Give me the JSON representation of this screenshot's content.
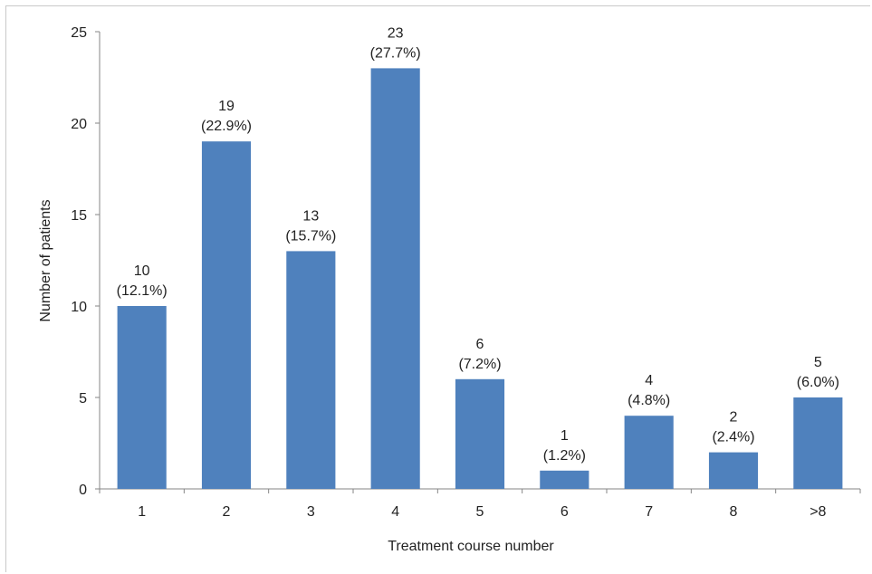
{
  "chart_data": {
    "type": "bar",
    "title": "",
    "xlabel": "Treatment course number",
    "ylabel": "Number of patients",
    "categories": [
      "1",
      "2",
      "3",
      "4",
      "5",
      "6",
      "7",
      "8",
      ">8"
    ],
    "values": [
      10,
      19,
      13,
      23,
      6,
      1,
      4,
      2,
      5
    ],
    "percent_labels": [
      "(12.1%)",
      "(22.9%)",
      "(15.7%)",
      "(27.7%)",
      "(7.2%)",
      "(1.2%)",
      "(4.8%)",
      "(2.4%)",
      "(6.0%)"
    ],
    "ylim": [
      0,
      25
    ],
    "yticks": [
      0,
      5,
      10,
      15,
      20,
      25
    ],
    "grid": false,
    "legend": "none",
    "bar_color": "#4F81BD"
  }
}
